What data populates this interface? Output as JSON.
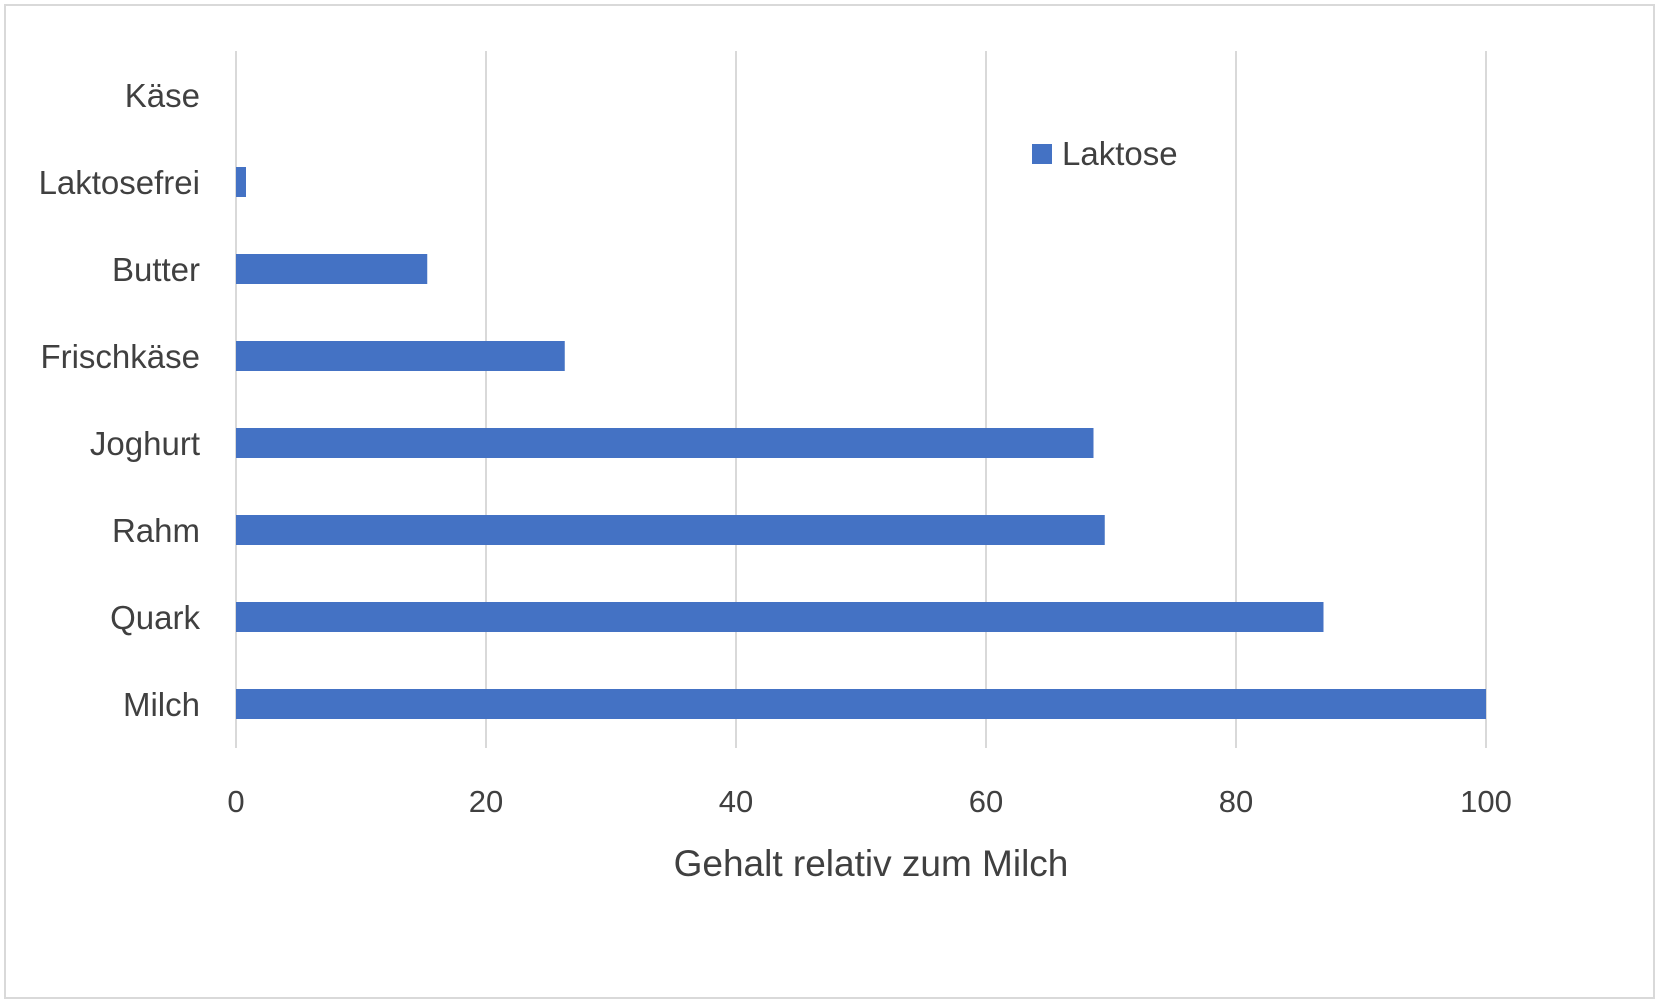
{
  "chart_data": {
    "type": "bar",
    "orientation": "horizontal",
    "categories": [
      "Milch",
      "Quark",
      "Rahm",
      "Joghurt",
      "Frischkäse",
      "Butter",
      "Laktosefrei",
      "Käse"
    ],
    "series": [
      {
        "name": "Laktose",
        "color": "#4472c4",
        "values": [
          100,
          87,
          69.5,
          68.6,
          26.3,
          15.3,
          0.8,
          0
        ]
      }
    ],
    "xlabel": "Gehalt relativ zum Milch",
    "ylabel": "",
    "xlim": [
      0,
      100
    ],
    "xticks": [
      0,
      20,
      40,
      60,
      80,
      100
    ],
    "grid": true,
    "legend_position": "top-right"
  }
}
